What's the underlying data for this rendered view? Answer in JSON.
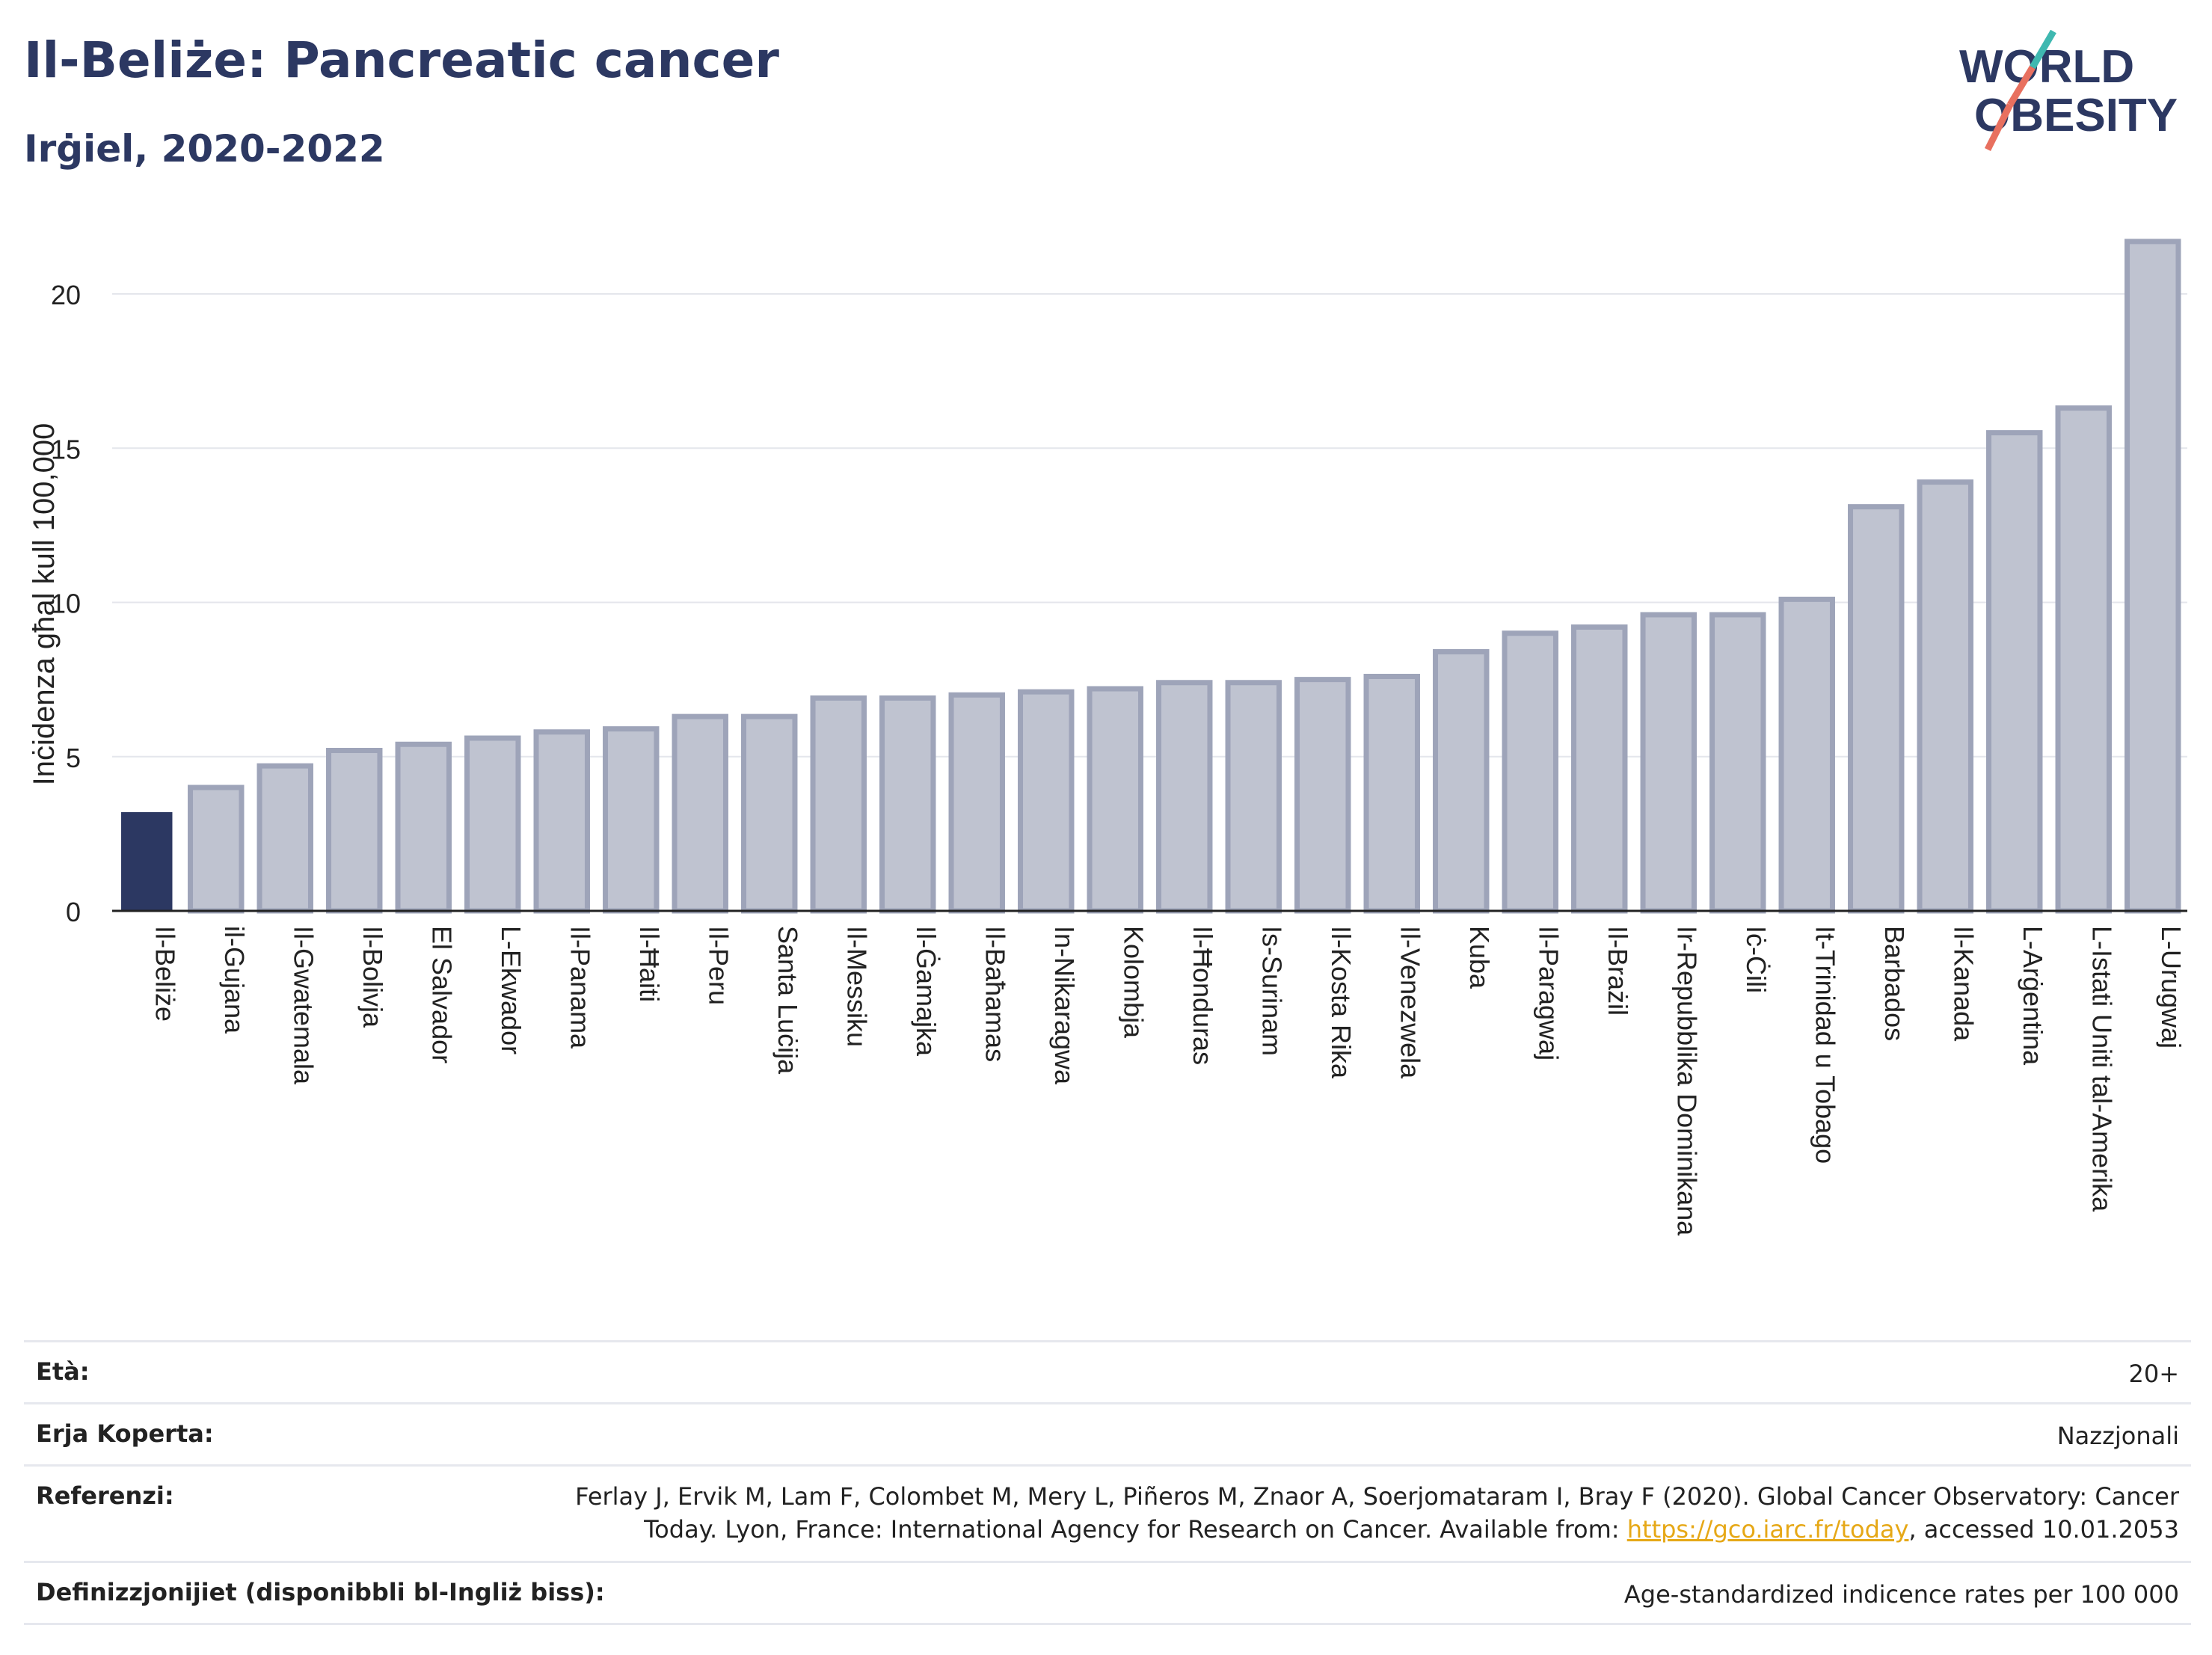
{
  "header": {
    "title": "Il-Beliże: Pancreatic cancer",
    "subtitle": "Irġiel, 2020-2022"
  },
  "logo": {
    "line1": "WORLD",
    "line2": "OBESITY"
  },
  "colors": {
    "highlight": "#2c3862",
    "bar": "#bfc3d0",
    "bar_edge": "#9ea4b9",
    "grid": "#e4e6ec",
    "text_dark": "#2c3862",
    "link": "#e6a817"
  },
  "chart_data": {
    "type": "bar",
    "ylabel": "Inċidenza għal kull 100,000",
    "ylim": [
      0,
      22
    ],
    "yticks": [
      0,
      5,
      10,
      15,
      20
    ],
    "highlight": "Il-Beliże",
    "categories": [
      "Il-Beliże",
      "il-Gujana",
      "Il-Gwatemala",
      "Il-Bolivja",
      "El Salvador",
      "L-Ekwador",
      "Il-Panama",
      "Il-Ħaiti",
      "Il-Peru",
      "Santa Luċija",
      "Il-Messiku",
      "Il-Ġamajka",
      "Il-Baħamas",
      "In-Nikaragwa",
      "Kolombja",
      "Il-Ħonduras",
      "Is-Surinam",
      "Il-Kosta Rika",
      "Il-Venezwela",
      "Kuba",
      "Il-Paragwaj",
      "Il-Brażil",
      "Ir-Repubblika Dominikana",
      "Iċ-Ċili",
      "It-Trinidad u Tobago",
      "Barbados",
      "Il-Kanada",
      "L-Arġentina",
      "L-Istati Uniti tal-Amerika",
      "L-Urugwaj"
    ],
    "values": [
      3.2,
      4.0,
      4.7,
      5.2,
      5.4,
      5.6,
      5.8,
      5.9,
      6.3,
      6.3,
      6.9,
      6.9,
      7.0,
      7.1,
      7.2,
      7.4,
      7.4,
      7.5,
      7.6,
      8.4,
      9.0,
      9.2,
      9.6,
      9.6,
      10.1,
      13.1,
      13.9,
      15.5,
      16.3,
      21.7
    ]
  },
  "meta": {
    "age_label": "Età:",
    "age_value": "20+",
    "area_label": "Erja Koperta:",
    "area_value": "Nazzjonali",
    "ref_label": "Referenzi:",
    "ref_text_1": "Ferlay J, Ervik M, Lam F, Colombet M, Mery L, Piñeros M, Znaor A, Soerjomataram I, Bray F (2020). Global Cancer Observatory: Cancer",
    "ref_text_2": "Today. Lyon, France: International Agency for Research on Cancer. Available from: ",
    "ref_link": "https://gco.iarc.fr/today",
    "ref_text_3": ", accessed 10.01.2053",
    "def_label": "Definizzjonijiet (disponibbli bl-Ingliż biss):",
    "def_value": "Age-standardized indicence rates per 100 000"
  }
}
